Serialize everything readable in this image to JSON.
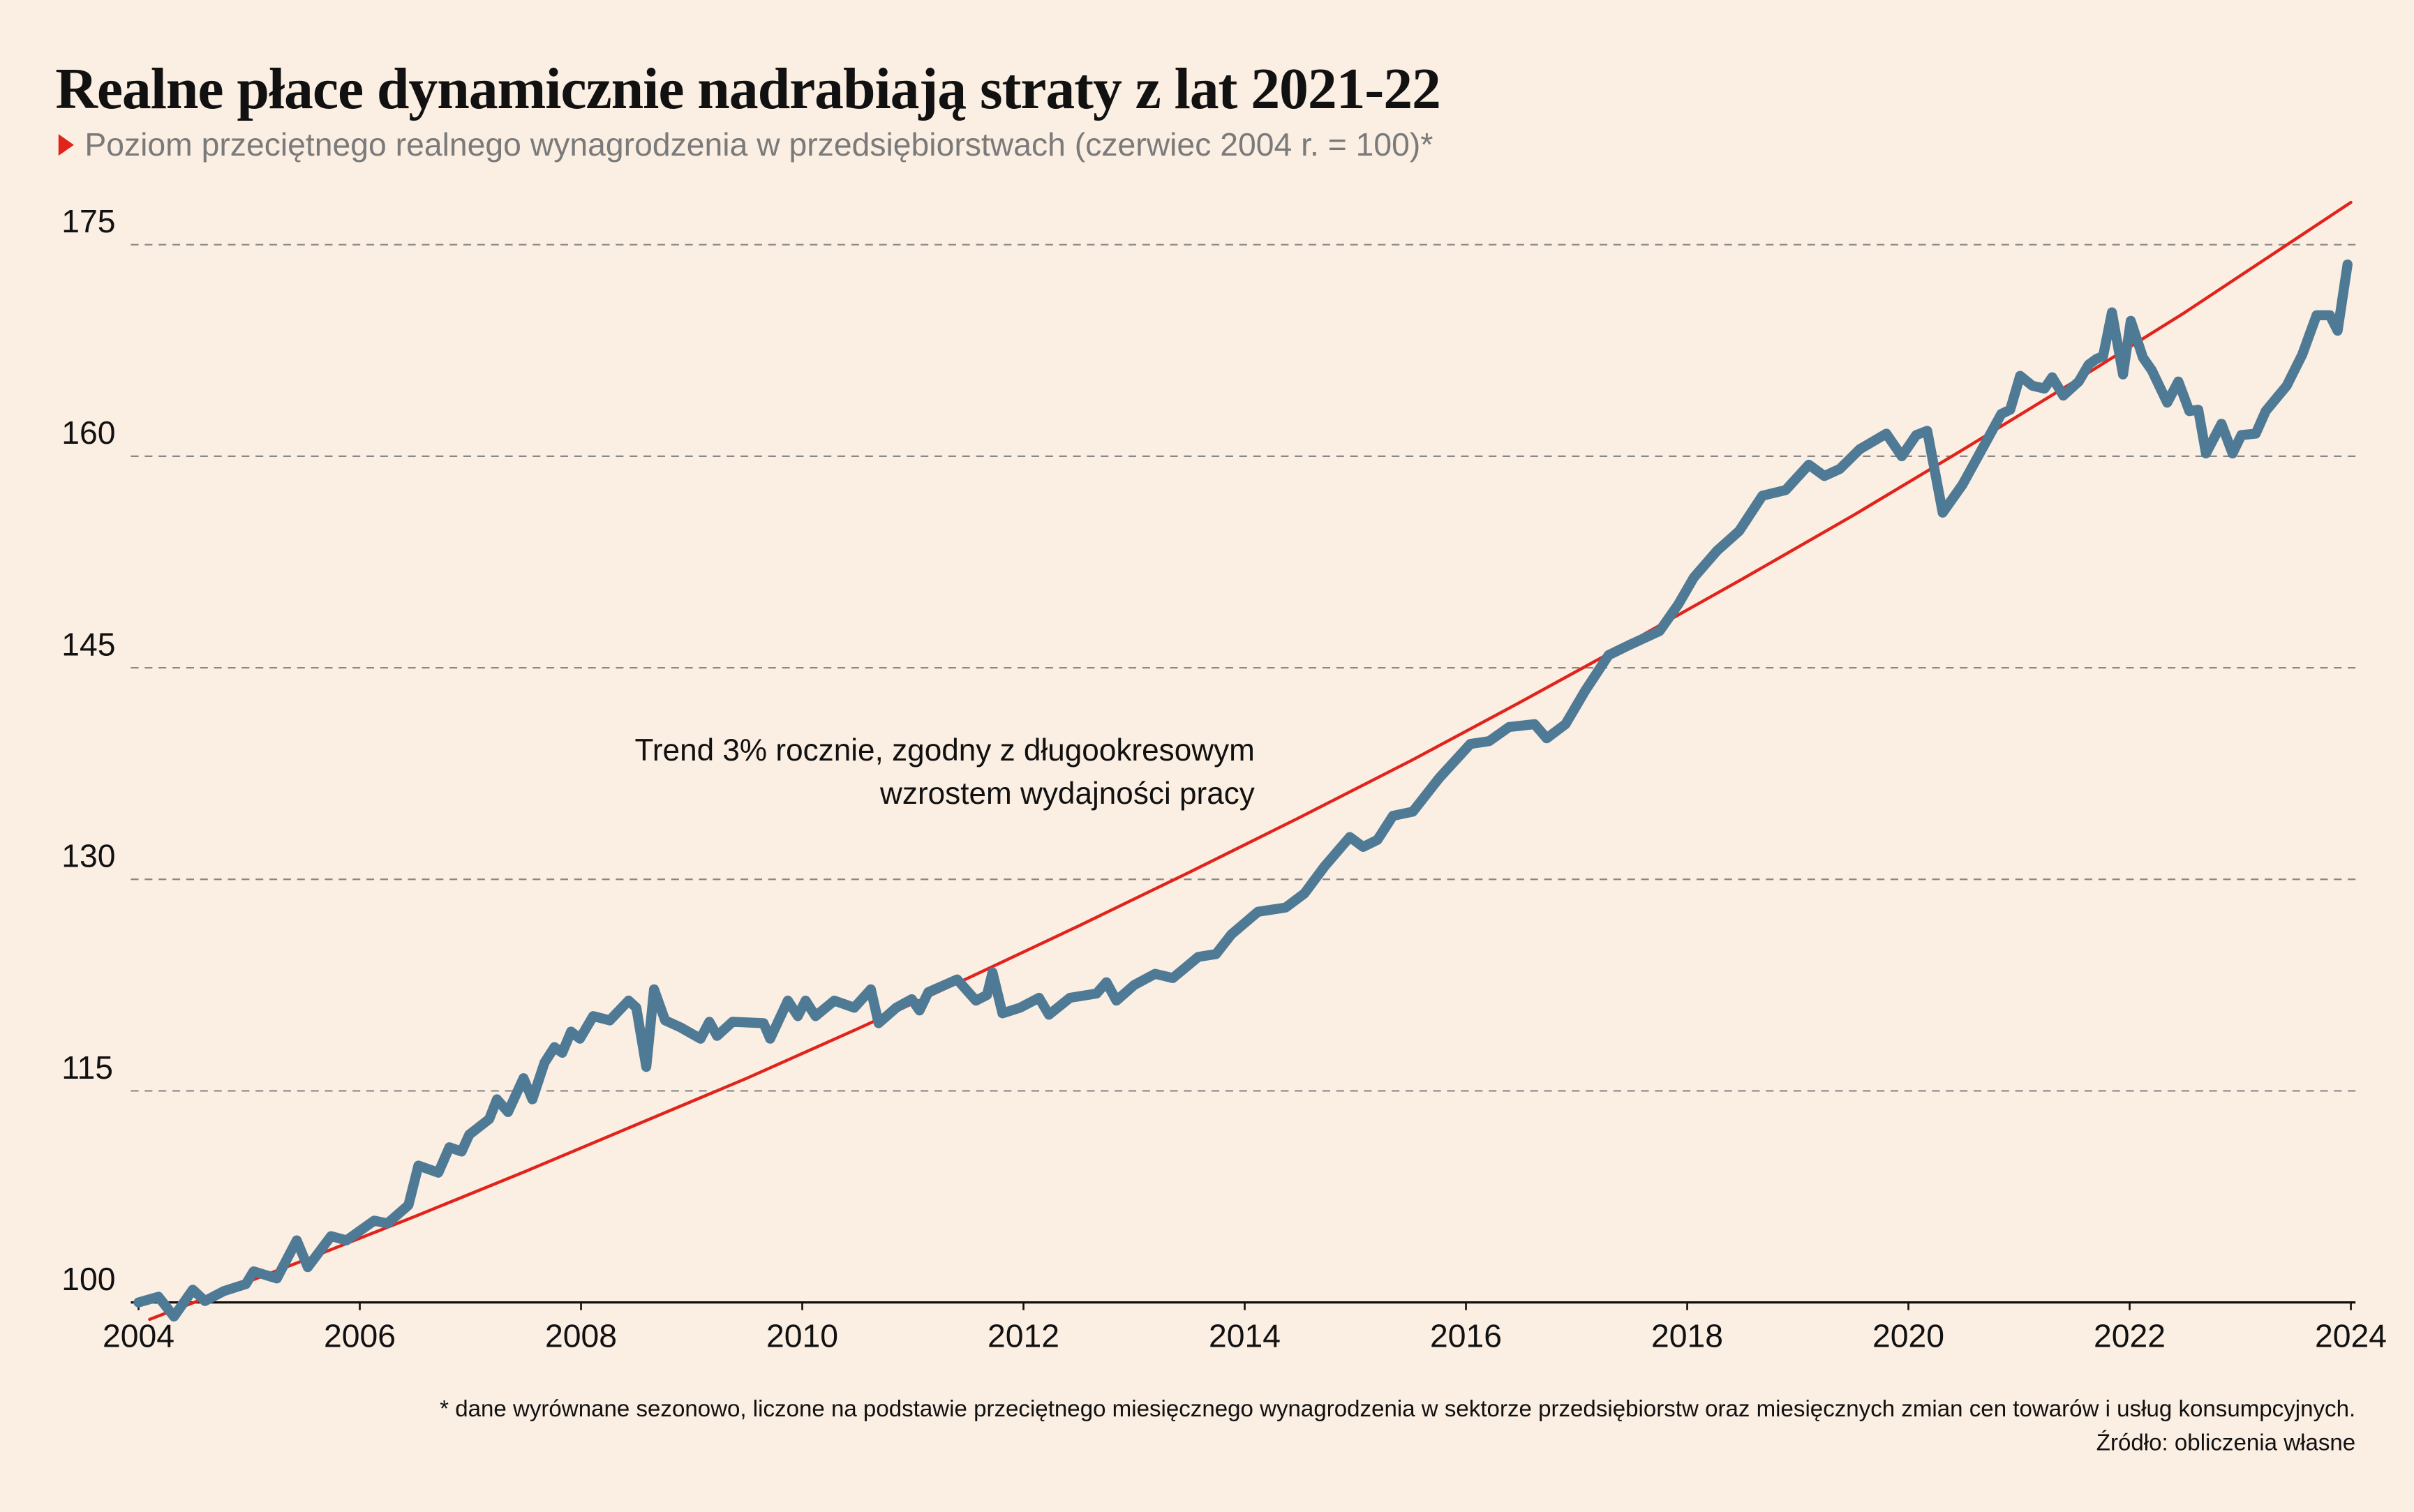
{
  "chart_data": {
    "type": "line",
    "title": "Realne płace dynamicznie nadrabiają straty z lat 2021-22",
    "subtitle": "Poziom przeciętnego realnego wynagrodzenia w przedsiębiorstwach (czerwiec 2004 r. = 100)*",
    "annotation": [
      "Trend 3% rocznie, zgodny z długookresowym",
      "wzrostem wydajności pracy"
    ],
    "footnote": "* dane wyrównane sezonowo, liczone na podstawie przeciętnego miesięcznego wynagrodzenia w sektorze przedsiębiorstw oraz miesięcznych zmian cen towarów i usług konsumpcyjnych.",
    "source": "Źródło: obliczenia własne",
    "xlim": [
      2004,
      2024
    ],
    "xticks": [
      2004,
      2006,
      2008,
      2010,
      2012,
      2014,
      2016,
      2018,
      2020,
      2022,
      2024
    ],
    "ylim": [
      100,
      180
    ],
    "yticks": [
      100,
      115,
      130,
      145,
      160,
      175
    ],
    "grid": true,
    "series": [
      {
        "color": "#4f7a96",
        "x": [
          2004.0,
          2004.18,
          2004.32,
          2004.49,
          2004.6,
          2004.77,
          2004.97,
          2005.04,
          2005.25,
          2005.43,
          2005.53,
          2005.74,
          2005.88,
          2006.13,
          2006.25,
          2006.44,
          2006.53,
          2006.71,
          2006.81,
          2006.92,
          2006.99,
          2007.17,
          2007.24,
          2007.34,
          2007.48,
          2007.56,
          2007.67,
          2007.76,
          2007.83,
          2007.91,
          2007.99,
          2008.11,
          2008.26,
          2008.43,
          2008.5,
          2008.59,
          2008.66,
          2008.76,
          2008.9,
          2009.08,
          2009.16,
          2009.23,
          2009.37,
          2009.65,
          2009.71,
          2009.87,
          2009.96,
          2010.03,
          2010.12,
          2010.29,
          2010.47,
          2010.62,
          2010.69,
          2010.85,
          2010.99,
          2011.06,
          2011.14,
          2011.4,
          2011.57,
          2011.67,
          2011.72,
          2011.81,
          2011.97,
          2012.14,
          2012.23,
          2012.42,
          2012.66,
          2012.75,
          2012.84,
          2013.0,
          2013.19,
          2013.35,
          2013.58,
          2013.74,
          2013.88,
          2014.12,
          2014.37,
          2014.54,
          2014.72,
          2014.95,
          2015.07,
          2015.2,
          2015.34,
          2015.52,
          2015.76,
          2016.04,
          2016.21,
          2016.39,
          2016.62,
          2016.73,
          2016.9,
          2017.08,
          2017.29,
          2017.5,
          2017.75,
          2017.92,
          2018.06,
          2018.27,
          2018.47,
          2018.68,
          2018.89,
          2019.1,
          2019.24,
          2019.38,
          2019.56,
          2019.8,
          2019.94,
          2020.07,
          2020.17,
          2020.31,
          2020.49,
          2020.7,
          2020.84,
          2020.92,
          2021.01,
          2021.12,
          2021.23,
          2021.3,
          2021.4,
          2021.54,
          2021.63,
          2021.7,
          2021.76,
          2021.84,
          2021.94,
          2022.01,
          2022.12,
          2022.2,
          2022.34,
          2022.44,
          2022.54,
          2022.62,
          2022.69,
          2022.83,
          2022.93,
          2023.01,
          2023.14,
          2023.23,
          2023.42,
          2023.56,
          2023.69,
          2023.81,
          2023.88,
          2023.97
        ],
        "values": [
          100,
          100.4,
          99,
          100.9,
          100.1,
          100.8,
          101.3,
          102.2,
          101.7,
          104.4,
          102.5,
          104.7,
          104.4,
          105.8,
          105.6,
          106.9,
          109.7,
          109.2,
          111,
          110.7,
          111.9,
          113,
          114.4,
          113.5,
          115.9,
          114.4,
          117,
          118.1,
          117.7,
          119.2,
          118.7,
          120.3,
          120,
          121.4,
          120.9,
          116.7,
          122.2,
          120,
          119.5,
          118.7,
          119.9,
          118.9,
          119.9,
          119.8,
          118.7,
          121.4,
          120.3,
          121.4,
          120.3,
          121.4,
          120.9,
          122.2,
          119.8,
          120.9,
          121.5,
          120.7,
          122,
          122.9,
          121.4,
          121.8,
          123.4,
          120.5,
          120.9,
          121.6,
          120.4,
          121.6,
          121.9,
          122.7,
          121.4,
          122.5,
          123.3,
          123,
          124.5,
          124.7,
          126.1,
          127.7,
          128,
          129,
          130.9,
          133,
          132.3,
          132.8,
          134.5,
          134.8,
          137.2,
          139.6,
          139.8,
          140.8,
          141,
          140,
          141,
          143.4,
          145.9,
          146.7,
          147.6,
          149.5,
          151.4,
          153.3,
          154.7,
          157.2,
          157.6,
          159.4,
          158.6,
          159.1,
          160.5,
          161.6,
          160,
          161.5,
          161.8,
          156,
          158,
          161,
          163,
          163.3,
          165.7,
          165,
          164.8,
          165.6,
          164.3,
          165.3,
          166.5,
          166.9,
          167.1,
          170.2,
          165.8,
          169.6,
          167,
          166.1,
          163.8,
          165.3,
          163.2,
          163.3,
          160.2,
          162.3,
          160.2,
          161.5,
          161.6,
          163.2,
          165,
          167.2,
          170,
          170,
          168.9,
          173.6
        ]
      },
      {
        "color": "#e0241c",
        "x": [
          2004.1,
          2004.5,
          2005.5,
          2006.5,
          2007.5,
          2008.5,
          2009.5,
          2010.5,
          2011.5,
          2012.5,
          2013.5,
          2014.5,
          2015.5,
          2016.5,
          2017.5,
          2018.5,
          2019.5,
          2020.5,
          2021.5,
          2022.5,
          2023.5,
          2024
        ],
        "values": [
          98.8,
          100,
          103,
          106.1,
          109.3,
          112.6,
          115.9,
          119.4,
          123,
          126.7,
          130.5,
          134.4,
          138.4,
          142.6,
          146.9,
          151.3,
          155.8,
          160.5,
          165.3,
          170.2,
          175.4,
          178
        ]
      }
    ]
  }
}
